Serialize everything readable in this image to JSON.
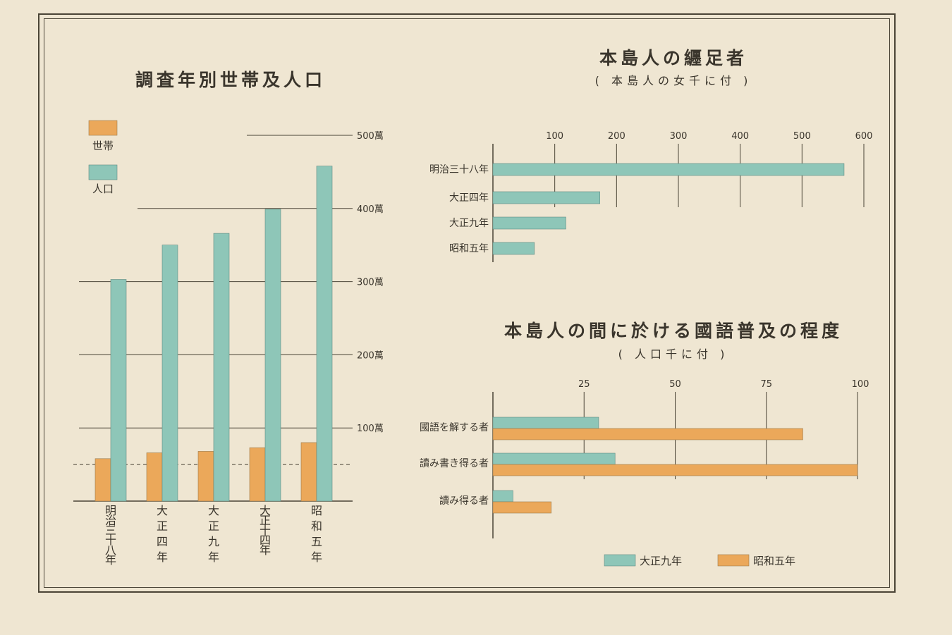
{
  "colors": {
    "teal": "#8ec6b8",
    "orange": "#eba85a",
    "line": "#4a4436"
  },
  "chart_data": [
    {
      "type": "bar",
      "title": "調査年別世帯及人口",
      "orientation": "vertical",
      "categories": [
        "明治三十八年",
        "大正四年",
        "大正九年",
        "大正十四年",
        "昭和五年"
      ],
      "series": [
        {
          "name": "世帯",
          "color": "orange",
          "values": [
            58,
            66,
            68,
            73,
            80
          ]
        },
        {
          "name": "人口",
          "color": "teal",
          "values": [
            303,
            350,
            366,
            399,
            458
          ]
        }
      ],
      "unit": "萬",
      "ylim": [
        0,
        500
      ],
      "yticks": [
        "100萬",
        "200萬",
        "300萬",
        "400萬",
        "500萬"
      ],
      "ytick_values": [
        100,
        200,
        300,
        400,
        500
      ],
      "reference_line": 50,
      "legend": "top-left",
      "grid": true
    },
    {
      "type": "bar",
      "title": "本島人の纒足者",
      "subtitle": "( 本島人の女千に付 )",
      "orientation": "horizontal",
      "categories": [
        "明治三十八年",
        "大正四年",
        "大正九年",
        "昭和五年"
      ],
      "series": [
        {
          "color": "teal",
          "values": [
            568,
            173,
            118,
            67
          ]
        }
      ],
      "xlim": [
        0,
        600
      ],
      "xticks": [
        "100",
        "200",
        "300",
        "400",
        "500",
        "600"
      ],
      "xtick_values": [
        100,
        200,
        300,
        400,
        500,
        600
      ],
      "grid": true
    },
    {
      "type": "bar",
      "title": "本島人の間に於ける國語普及の程度",
      "subtitle": "( 人口千に付 )",
      "orientation": "horizontal",
      "categories": [
        "國語を解する者",
        "讀み書き得る者",
        "讀み得る者"
      ],
      "series": [
        {
          "name": "大正九年",
          "color": "teal",
          "values": [
            29,
            33.5,
            5.5
          ]
        },
        {
          "name": "昭和五年",
          "color": "orange",
          "values": [
            85,
            100,
            16
          ]
        }
      ],
      "xlim": [
        0,
        100
      ],
      "xticks": [
        "25",
        "50",
        "75",
        "100"
      ],
      "xtick_values": [
        25,
        50,
        75,
        100
      ],
      "legend": "bottom",
      "grid": true
    }
  ]
}
